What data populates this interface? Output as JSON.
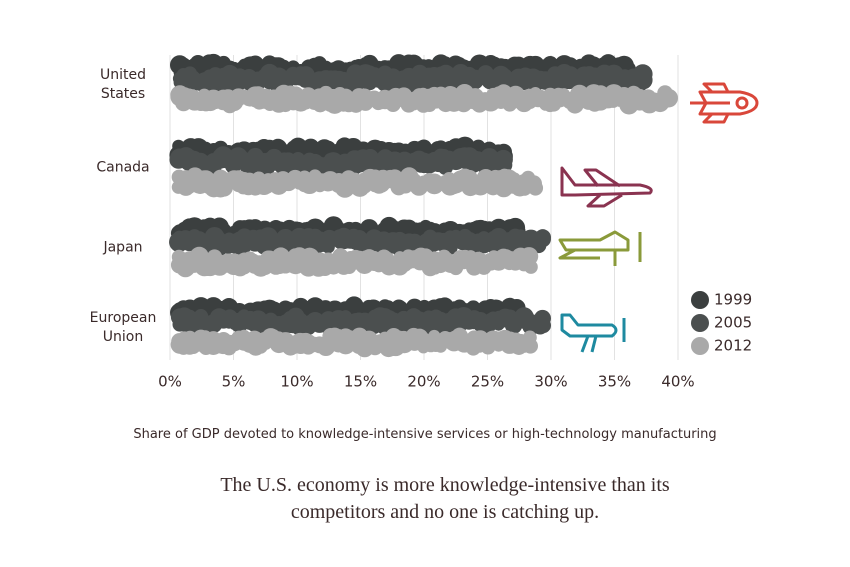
{
  "chart_data": {
    "type": "bar",
    "orientation": "horizontal",
    "grid": true,
    "legend": "right",
    "categories": [
      "United States",
      "Canada",
      "Japan",
      "European Union"
    ],
    "series": [
      {
        "name": "1999",
        "color": "#3b3f3f",
        "values": [
          37,
          27,
          28,
          28
        ]
      },
      {
        "name": "2005",
        "color": "#4b4f4f",
        "values": [
          38,
          27,
          30,
          30
        ]
      },
      {
        "name": "2012",
        "color": "#a9a9a9",
        "values": [
          40,
          29.5,
          29,
          29
        ]
      }
    ],
    "xlim": [
      0,
      40
    ],
    "xticks": [
      {
        "value": 0,
        "label": "0%"
      },
      {
        "value": 5,
        "label": "5%"
      },
      {
        "value": 10,
        "label": "10%"
      },
      {
        "value": 15,
        "label": "15%"
      },
      {
        "value": 20,
        "label": "20%"
      },
      {
        "value": 25,
        "label": "25%"
      },
      {
        "value": 30,
        "label": "30%"
      },
      {
        "value": 35,
        "label": "35%"
      },
      {
        "value": 40,
        "label": "40%"
      }
    ],
    "xlabel": "Share of GDP devoted to knowledge-intensive services or high-technology manufacturing",
    "caption": "The U.S. economy is more knowledge-intensive than its competitors and no one is catching up."
  }
}
